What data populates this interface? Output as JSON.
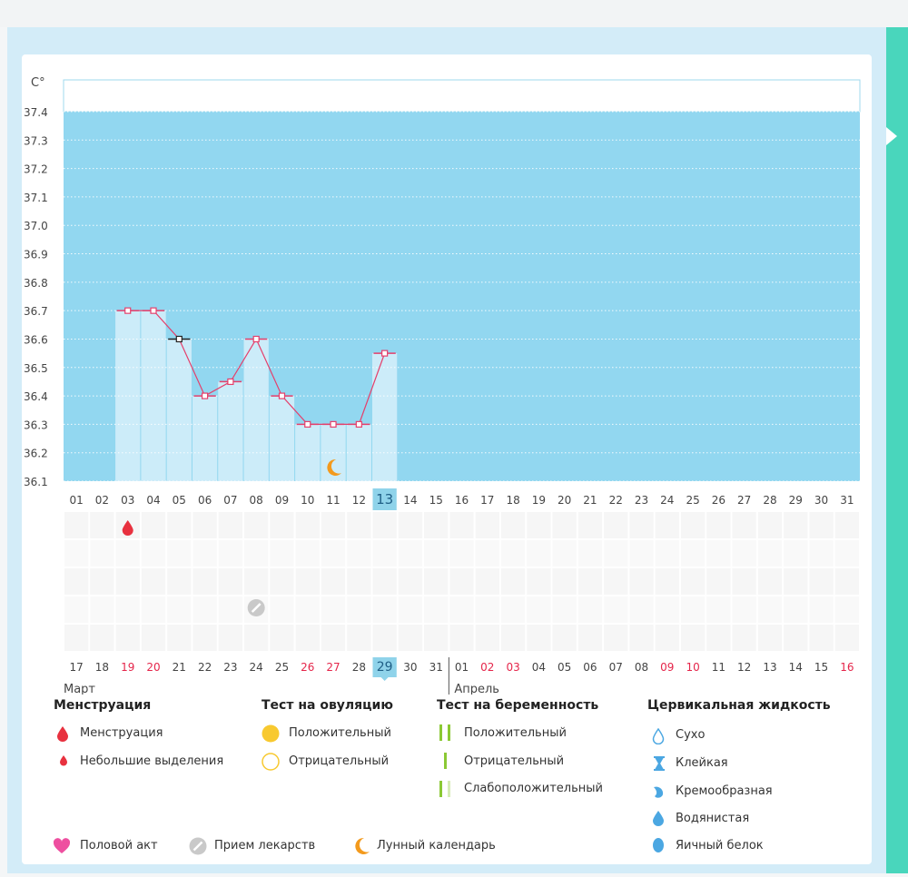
{
  "chart_data": {
    "type": "line",
    "y_unit_label": "C°",
    "yticks": [
      "37.4",
      "37.3",
      "37.2",
      "37.1",
      "37.0",
      "36.9",
      "36.8",
      "36.7",
      "36.6",
      "36.5",
      "36.4",
      "36.3",
      "36.2",
      "36.1"
    ],
    "ylim": [
      36.1,
      37.4
    ],
    "cycle_days": [
      "01",
      "02",
      "03",
      "04",
      "05",
      "06",
      "07",
      "08",
      "09",
      "10",
      "11",
      "12",
      "13",
      "14",
      "15",
      "16",
      "17",
      "18",
      "19",
      "20",
      "21",
      "22",
      "23",
      "24",
      "25",
      "26",
      "27",
      "28",
      "29",
      "30",
      "31"
    ],
    "current_cycle_day": "13",
    "temperature": [
      null,
      null,
      36.7,
      36.7,
      36.6,
      36.4,
      36.45,
      36.6,
      36.4,
      36.3,
      36.3,
      36.3,
      36.55
    ],
    "excluded_points": [
      "05"
    ],
    "markers": {
      "menstruation_day": "03",
      "medication_day": "08",
      "moon_day": "11"
    },
    "dates": [
      {
        "d": "17",
        "red": false
      },
      {
        "d": "18",
        "red": false
      },
      {
        "d": "19",
        "red": true
      },
      {
        "d": "20",
        "red": true
      },
      {
        "d": "21",
        "red": false
      },
      {
        "d": "22",
        "red": false
      },
      {
        "d": "23",
        "red": false
      },
      {
        "d": "24",
        "red": false
      },
      {
        "d": "25",
        "red": false
      },
      {
        "d": "26",
        "red": true
      },
      {
        "d": "27",
        "red": true
      },
      {
        "d": "28",
        "red": false
      },
      {
        "d": "29",
        "red": false,
        "current": true
      },
      {
        "d": "30",
        "red": false
      },
      {
        "d": "31",
        "red": false
      },
      {
        "d": "01",
        "red": false
      },
      {
        "d": "02",
        "red": true
      },
      {
        "d": "03",
        "red": true
      },
      {
        "d": "04",
        "red": false
      },
      {
        "d": "05",
        "red": false
      },
      {
        "d": "06",
        "red": false
      },
      {
        "d": "07",
        "red": false
      },
      {
        "d": "08",
        "red": false
      },
      {
        "d": "09",
        "red": true
      },
      {
        "d": "10",
        "red": true
      },
      {
        "d": "11",
        "red": false
      },
      {
        "d": "12",
        "red": false
      },
      {
        "d": "13",
        "red": false
      },
      {
        "d": "14",
        "red": false
      },
      {
        "d": "15",
        "red": false
      },
      {
        "d": "16",
        "red": true
      }
    ],
    "month_labels": [
      "Март",
      "Апрель"
    ],
    "colors": {
      "future_bg": "#92d7f0",
      "past_bg": "#ccecf9",
      "line": "#e53f6b",
      "current_day_bg": "#8fd3ea",
      "red_date": "#e5254a"
    }
  },
  "legend": {
    "menstruation": {
      "title": "Менструация",
      "items": [
        "Менструация",
        "Небольшие выделения"
      ]
    },
    "ovulation": {
      "title": "Тест на овуляцию",
      "items": [
        "Положительный",
        "Отрицательный"
      ]
    },
    "pregnancy": {
      "title": "Тест на беременность",
      "items": [
        "Положительный",
        "Отрицательный",
        "Слабоположительный"
      ]
    },
    "cervical": {
      "title": "Цервикальная жидкость",
      "items": [
        "Сухо",
        "Клейкая",
        "Кремообразная",
        "Водянистая",
        "Яичный белок"
      ]
    },
    "bottom": [
      "Половой акт",
      "Прием лекарств",
      "Лунный календарь"
    ]
  }
}
